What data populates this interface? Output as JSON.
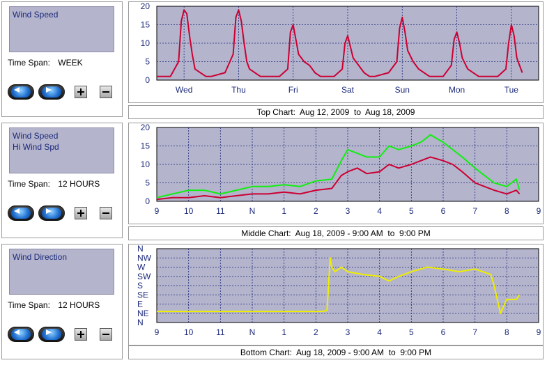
{
  "panels": [
    {
      "legend": [
        "Wind Speed"
      ],
      "time_span_label": "Time Span:",
      "time_span_value": "WEEK",
      "caption": "Top Chart:  Aug 12, 2009  to  Aug 18, 2009"
    },
    {
      "legend": [
        "Wind Speed",
        "Hi Wind Spd"
      ],
      "time_span_label": "Time Span:",
      "time_span_value": "12 HOURS",
      "caption": "Middle Chart:  Aug 18, 2009 - 9:00 AM  to  9:00 PM"
    },
    {
      "legend": [
        "Wind Direction"
      ],
      "time_span_label": "Time Span:",
      "time_span_value": "12 HOURS",
      "caption": "Bottom Chart:  Aug 18, 2009 - 9:00 AM  to  9:00 PM"
    }
  ],
  "colors": {
    "plot_bg": "#b4b4cc",
    "grid": "#1c2a7a",
    "wind_speed": "#cc0033",
    "hi_wind_spd": "#11ee11",
    "wind_direction": "#eeee00"
  },
  "chart_data": [
    {
      "type": "line",
      "x_categories": [
        "Wed",
        "Thu",
        "Fri",
        "Sat",
        "Sun",
        "Mon",
        "Tue"
      ],
      "ylim": [
        0,
        20
      ],
      "yticks": [
        0,
        5,
        10,
        15,
        20
      ],
      "grid": true,
      "series": [
        {
          "name": "Wind Speed",
          "x_days": [
            0.0,
            0.25,
            0.4,
            0.45,
            0.5,
            0.55,
            0.6,
            0.65,
            0.7,
            0.8,
            0.9,
            1.0,
            1.25,
            1.4,
            1.45,
            1.5,
            1.55,
            1.6,
            1.65,
            1.7,
            1.8,
            1.9,
            2.0,
            2.25,
            2.4,
            2.45,
            2.5,
            2.55,
            2.6,
            2.7,
            2.8,
            2.9,
            3.0,
            3.25,
            3.4,
            3.45,
            3.5,
            3.55,
            3.6,
            3.7,
            3.8,
            3.9,
            4.0,
            4.25,
            4.4,
            4.45,
            4.5,
            4.55,
            4.6,
            4.7,
            4.8,
            4.9,
            5.0,
            5.25,
            5.4,
            5.45,
            5.5,
            5.55,
            5.6,
            5.7,
            5.8,
            5.9,
            6.0,
            6.25,
            6.4,
            6.45,
            6.5,
            6.55,
            6.6,
            6.7
          ],
          "values": [
            1,
            1,
            5,
            16,
            19,
            18,
            12,
            7,
            3,
            2,
            1,
            1,
            2,
            7,
            17,
            19,
            16,
            10,
            5,
            3,
            2,
            1,
            1,
            1,
            3,
            13,
            15,
            11,
            7,
            5,
            4,
            2,
            1,
            1,
            3,
            10,
            12,
            9,
            6,
            4,
            2,
            1,
            1,
            2,
            5,
            14,
            17,
            13,
            8,
            5,
            3,
            2,
            1,
            1,
            4,
            11,
            13,
            10,
            6,
            3,
            2,
            1,
            1,
            1,
            3,
            10,
            15,
            12,
            6,
            2
          ]
        }
      ]
    },
    {
      "type": "line",
      "x_ticks": [
        "9",
        "10",
        "11",
        "N",
        "1",
        "2",
        "3",
        "4",
        "5",
        "6",
        "7",
        "8",
        "9"
      ],
      "ylim": [
        0,
        20
      ],
      "yticks": [
        0,
        5,
        10,
        15,
        20
      ],
      "grid": true,
      "series": [
        {
          "name": "Wind Speed",
          "x_hours": [
            0.0,
            0.5,
            1.0,
            1.5,
            2.0,
            2.5,
            3.0,
            3.5,
            4.0,
            4.5,
            5.0,
            5.5,
            5.8,
            6.0,
            6.3,
            6.6,
            7.0,
            7.3,
            7.6,
            8.0,
            8.3,
            8.6,
            9.0,
            9.3,
            9.6,
            10.0,
            10.3,
            10.6,
            11.0,
            11.3,
            11.4
          ],
          "values": [
            0.5,
            1,
            1,
            1.5,
            1,
            1.5,
            2,
            2,
            2.5,
            2,
            3,
            3.5,
            7,
            8,
            9,
            7.5,
            8,
            10,
            9,
            10,
            11,
            12,
            11,
            10,
            8,
            5,
            4,
            3,
            2,
            3,
            2
          ]
        },
        {
          "name": "Hi Wind Spd",
          "x_hours": [
            0.0,
            0.5,
            1.0,
            1.5,
            2.0,
            2.5,
            3.0,
            3.5,
            4.0,
            4.5,
            5.0,
            5.5,
            5.8,
            6.0,
            6.3,
            6.6,
            7.0,
            7.3,
            7.6,
            8.0,
            8.3,
            8.6,
            9.0,
            9.3,
            9.6,
            10.0,
            10.3,
            10.6,
            11.0,
            11.3,
            11.4
          ],
          "values": [
            1,
            2,
            3,
            3,
            2,
            3,
            4,
            4,
            4.5,
            4,
            5.5,
            6,
            11,
            14,
            13,
            12,
            12,
            15,
            14,
            15,
            16,
            18,
            16,
            14,
            12,
            9,
            7,
            5,
            4,
            6,
            3
          ]
        }
      ]
    },
    {
      "type": "line",
      "x_ticks": [
        "9",
        "10",
        "11",
        "N",
        "1",
        "2",
        "3",
        "4",
        "5",
        "6",
        "7",
        "8",
        "9"
      ],
      "y_labels": [
        "N",
        "NE",
        "E",
        "SE",
        "S",
        "SW",
        "W",
        "NW",
        "N"
      ],
      "grid": true,
      "series": [
        {
          "name": "Wind Direction",
          "x_hours": [
            0.0,
            2.0,
            4.0,
            5.2,
            5.35,
            5.45,
            5.5,
            5.6,
            5.8,
            6.0,
            6.5,
            7.0,
            7.3,
            7.6,
            8.0,
            8.5,
            9.0,
            9.5,
            10.0,
            10.5,
            10.6,
            10.8,
            11.0,
            11.3,
            11.4
          ],
          "values": [
            1.2,
            1.2,
            1.2,
            1.2,
            1.3,
            7.0,
            6.0,
            5.5,
            6.0,
            5.5,
            5.2,
            5.0,
            4.5,
            5.0,
            5.5,
            6.0,
            5.8,
            5.5,
            5.8,
            5.2,
            4.0,
            1.0,
            2.5,
            2.5,
            3.0
          ]
        }
      ]
    }
  ]
}
